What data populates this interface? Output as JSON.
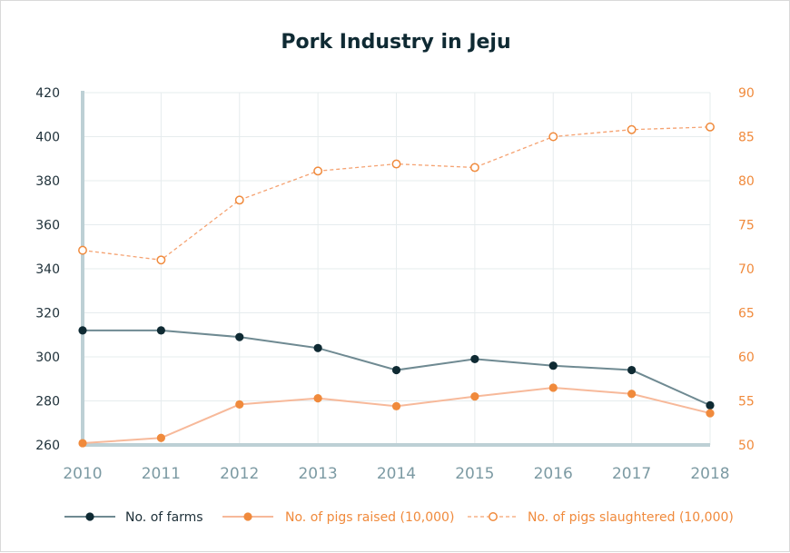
{
  "chart_data": {
    "type": "line",
    "title": "Pork Industry in Jeju",
    "x": [
      "2010",
      "2011",
      "2012",
      "2013",
      "2014",
      "2015",
      "2016",
      "2017",
      "2018"
    ],
    "y_left": {
      "ylim": [
        260,
        420
      ],
      "ticks": [
        "260",
        "280",
        "300",
        "320",
        "340",
        "360",
        "380",
        "400",
        "420"
      ]
    },
    "y_right": {
      "ylim": [
        50,
        90
      ],
      "ticks": [
        "50",
        "55",
        "60",
        "65",
        "70",
        "75",
        "80",
        "85",
        "90"
      ]
    },
    "grid": true,
    "legend_position": "bottom",
    "series": [
      {
        "name": "No. of farms",
        "axis": "left",
        "color": "#6f8a92",
        "marker_color": "#0f2a33",
        "style": "solid",
        "marker": "filled",
        "values": [
          312,
          312,
          309,
          304,
          294,
          299,
          296,
          294,
          278
        ]
      },
      {
        "name": "No. of pigs raised (10,000)",
        "axis": "right",
        "color": "#f7b99a",
        "marker_color": "#f08a3c",
        "style": "solid",
        "marker": "filled",
        "values": [
          50.2,
          50.8,
          54.6,
          55.3,
          54.4,
          55.5,
          56.5,
          55.8,
          53.6
        ]
      },
      {
        "name": "No. of pigs slaughtered (10,000)",
        "axis": "right",
        "color": "#f5a271",
        "marker_color": "#f08a3c",
        "style": "dashed",
        "marker": "hollow",
        "values": [
          72.1,
          71.0,
          77.8,
          81.1,
          81.9,
          81.5,
          85.0,
          85.8,
          86.1
        ]
      }
    ]
  }
}
